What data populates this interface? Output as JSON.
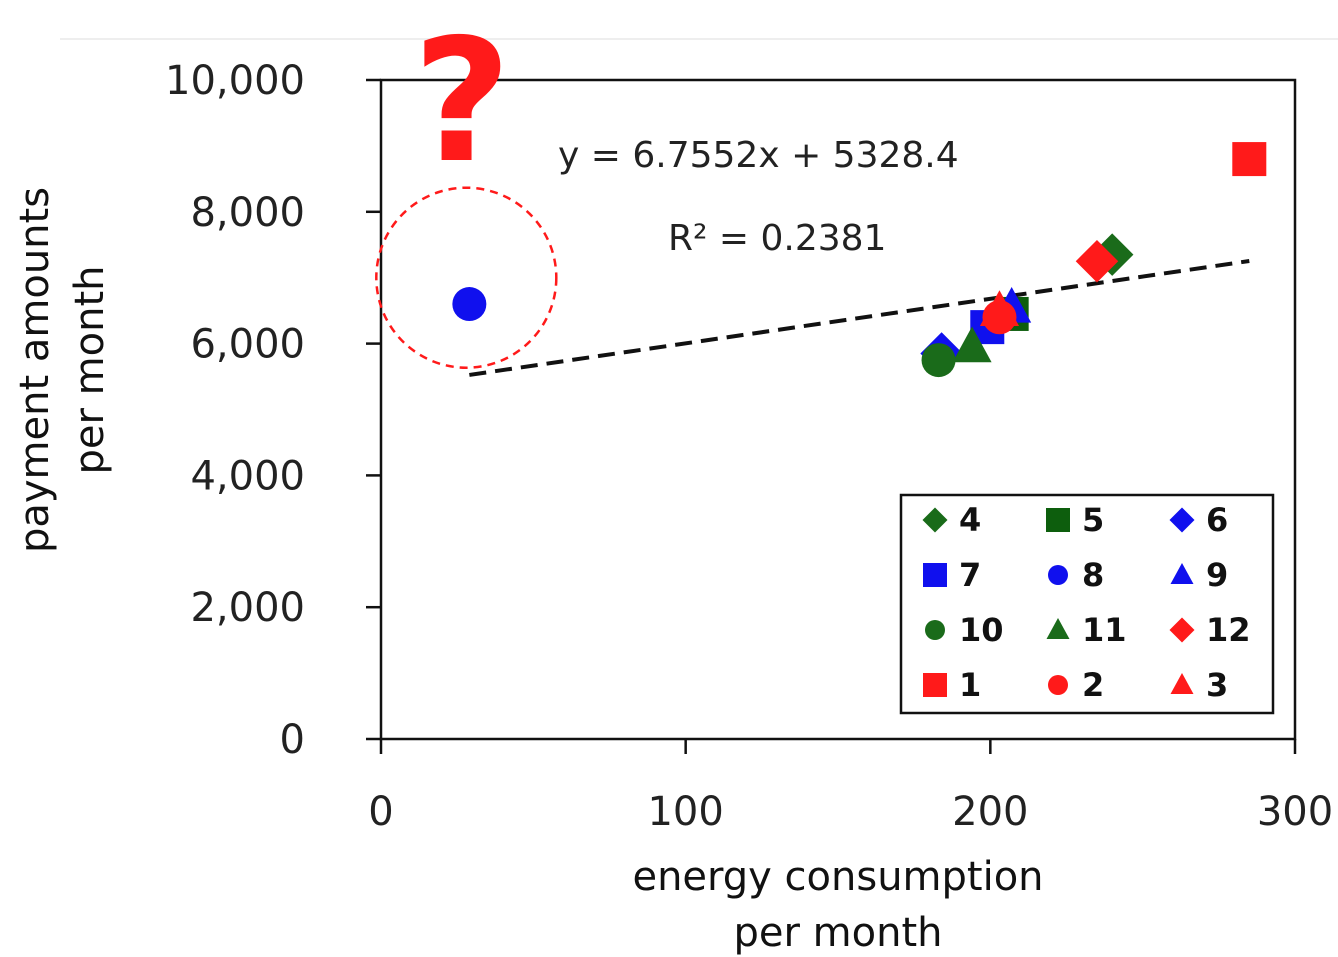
{
  "chart_data": {
    "type": "scatter",
    "xlabel_lines": [
      "energy consumption",
      "per month"
    ],
    "ylabel_lines": [
      "payment amounts",
      "per month"
    ],
    "xlim": [
      0,
      300
    ],
    "ylim": [
      0,
      10000
    ],
    "x_ticks": [
      {
        "value": 0,
        "label": "0"
      },
      {
        "value": 100,
        "label": "100"
      },
      {
        "value": 200,
        "label": "200"
      },
      {
        "value": 300,
        "label": "300"
      }
    ],
    "y_ticks": [
      {
        "value": 0,
        "label": "0"
      },
      {
        "value": 2000,
        "label": "2,000"
      },
      {
        "value": 4000,
        "label": "4,000"
      },
      {
        "value": 6000,
        "label": "6,000"
      },
      {
        "value": 8000,
        "label": "8,000"
      },
      {
        "value": 10000,
        "label": "10,000"
      }
    ],
    "grid": false,
    "legend_position": "bottom-right",
    "series": [
      {
        "name": "4",
        "marker": "diamond",
        "color": "#1a6b1a",
        "x": 240,
        "y": 7350
      },
      {
        "name": "5",
        "marker": "square",
        "color": "#0d5e0d",
        "x": 207,
        "y": 6450
      },
      {
        "name": "6",
        "marker": "diamond",
        "color": "#1010ee",
        "x": 184,
        "y": 5850
      },
      {
        "name": "7",
        "marker": "square",
        "color": "#1010ee",
        "x": 199,
        "y": 6250
      },
      {
        "name": "8",
        "marker": "circle",
        "color": "#1010ee",
        "x": 29,
        "y": 6600
      },
      {
        "name": "9",
        "marker": "triangle",
        "color": "#1010ee",
        "x": 207,
        "y": 6550
      },
      {
        "name": "10",
        "marker": "circle",
        "color": "#1a6b1a",
        "x": 183,
        "y": 5750
      },
      {
        "name": "11",
        "marker": "triangle",
        "color": "#1a6b1a",
        "x": 194,
        "y": 5950
      },
      {
        "name": "12",
        "marker": "diamond",
        "color": "#ff1a1a",
        "x": 235,
        "y": 7250
      },
      {
        "name": "1",
        "marker": "square",
        "color": "#ff1a1a",
        "x": 285,
        "y": 8800
      },
      {
        "name": "2",
        "marker": "circle",
        "color": "#ff1a1a",
        "x": 203,
        "y": 6400
      },
      {
        "name": "3",
        "marker": "triangle",
        "color": "#ff1a1a",
        "x": 203,
        "y": 6500
      }
    ],
    "trendline": {
      "style": "dashed",
      "color": "#111111",
      "equation": "y = 6.7552x + 5328.4",
      "r_squared": "R² = 0.2381",
      "slope": 6.7552,
      "intercept": 5328.4,
      "x_range": [
        29,
        285
      ]
    },
    "annotations": {
      "question_mark": "?",
      "outlier_circle_center": {
        "x": 28,
        "y": 7000
      },
      "outlier_color": "#ff1a1a"
    }
  }
}
